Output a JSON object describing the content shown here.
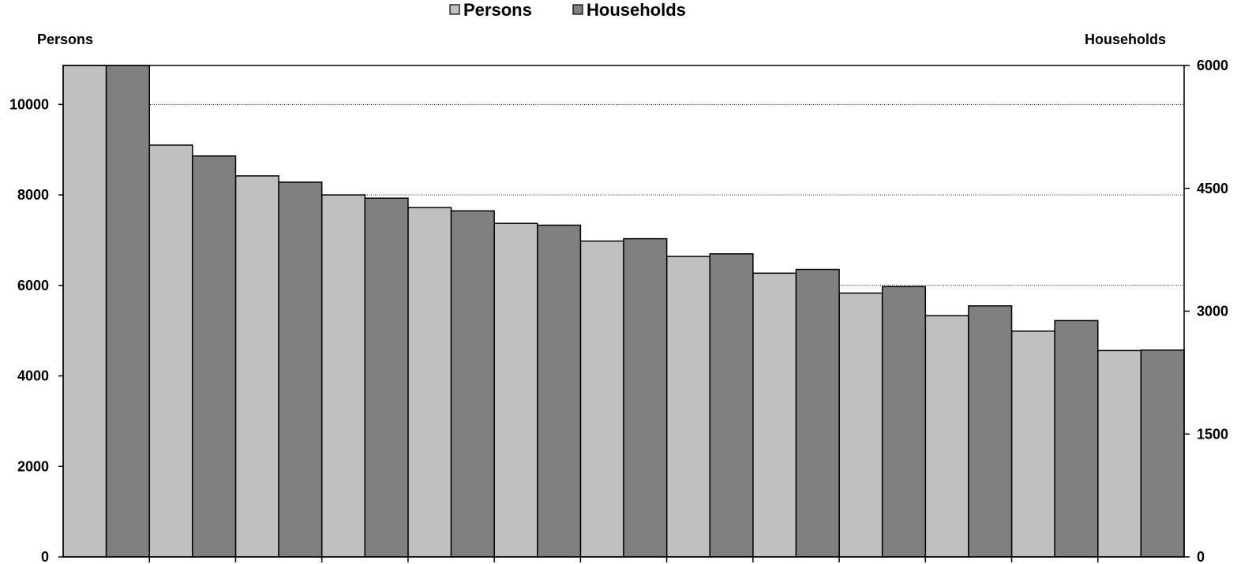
{
  "chart_data": {
    "type": "bar",
    "legend": {
      "position": "top-center"
    },
    "grid": {
      "horizontal": true,
      "style": "dotted"
    },
    "colors": {
      "Persons": "#c0c0c0",
      "Households": "#808080"
    },
    "y_left": {
      "label": "Persons",
      "range": [
        0,
        10860
      ],
      "ticks": [
        0,
        2000,
        4000,
        6000,
        8000,
        10000
      ]
    },
    "y_right": {
      "label": "Households",
      "range": [
        0,
        6000
      ],
      "ticks": [
        0,
        1500,
        3000,
        4500,
        6000
      ]
    },
    "categories": [
      "",
      "",
      "",
      "",
      "",
      "",
      "",
      "",
      "",
      "",
      "",
      "",
      ""
    ],
    "series": [
      {
        "name": "Persons",
        "axis": "left",
        "values": [
          10860,
          9100,
          8420,
          8000,
          7720,
          7370,
          6980,
          6640,
          6270,
          5830,
          5330,
          4990,
          4560
        ]
      },
      {
        "name": "Households",
        "axis": "right",
        "values": [
          6000,
          4895,
          4575,
          4380,
          4225,
          4050,
          3885,
          3700,
          3510,
          3300,
          3065,
          2885,
          2525
        ]
      }
    ]
  }
}
